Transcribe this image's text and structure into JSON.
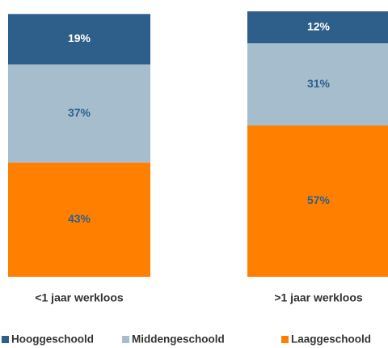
{
  "chart_data": {
    "type": "stacked-bar",
    "categories": [
      "<1 jaar werkloos",
      ">1 jaar werkloos"
    ],
    "series": [
      {
        "name": "Hooggeschoold",
        "color": "#2e5f8a",
        "label_color": "#ffffff",
        "values": [
          19,
          12
        ],
        "value_labels": [
          "19%",
          "12%"
        ]
      },
      {
        "name": "Middengeschoold",
        "color": "#a6bdcd",
        "label_color": "#2e5f8a",
        "values": [
          37,
          31
        ],
        "value_labels": [
          "37%",
          "31%"
        ]
      },
      {
        "name": "Laaggeschoold",
        "color": "#ff8000",
        "label_color": "#2e5f8a",
        "values": [
          43,
          57
        ],
        "value_labels": [
          "43%",
          "57%"
        ]
      }
    ],
    "ylim": [
      0,
      100
    ]
  }
}
